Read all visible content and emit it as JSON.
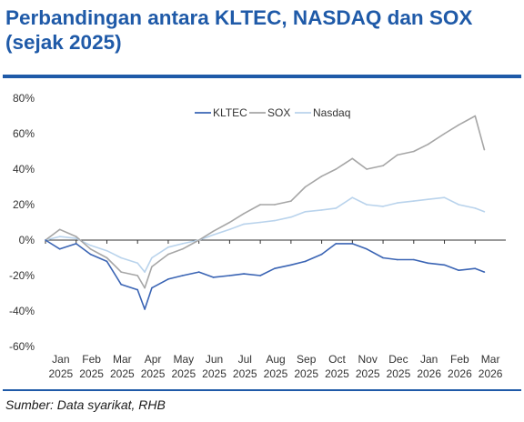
{
  "header": {
    "title_line1": "Perbandingan antara KLTEC, NASDAQ dan SOX",
    "title_line2": "(sejak 2025)"
  },
  "footer": {
    "source": "Sumber: Data syarikat, RHB"
  },
  "colors": {
    "title": "#1f5aa8",
    "kltec": "#3a64b4",
    "sox": "#a6a6a6",
    "nasdaq": "#b9d3ec"
  },
  "chart_data": {
    "type": "line",
    "title": "Perbandingan antara KLTEC, NASDAQ dan SOX (sejak 2025)",
    "xlabel": "",
    "ylabel": "",
    "ylim": [
      -60,
      80
    ],
    "y_ticks": [
      "80%",
      "60%",
      "40%",
      "20%",
      "0%",
      "-20%",
      "-40%",
      "-60%"
    ],
    "y_tick_values": [
      80,
      60,
      40,
      20,
      0,
      -20,
      -40,
      -60
    ],
    "x_ticks": [
      [
        "Jan",
        "2025"
      ],
      [
        "Feb",
        "2025"
      ],
      [
        "Mar",
        "2025"
      ],
      [
        "Apr",
        "2025"
      ],
      [
        "May",
        "2025"
      ],
      [
        "Jun",
        "2025"
      ],
      [
        "Jul",
        "2025"
      ],
      [
        "Aug",
        "2025"
      ],
      [
        "Sep",
        "2025"
      ],
      [
        "Oct",
        "2025"
      ],
      [
        "Nov",
        "2025"
      ],
      [
        "Dec",
        "2025"
      ],
      [
        "Jan",
        "2026"
      ],
      [
        "Feb",
        "2026"
      ],
      [
        "Mar",
        "2026"
      ]
    ],
    "legend_position": "top",
    "grid": false,
    "x": [
      "2025-01",
      "2025-01-15",
      "2025-02",
      "2025-02-15",
      "2025-03",
      "2025-03-15",
      "2025-04",
      "2025-04-08",
      "2025-04-15",
      "2025-05",
      "2025-05-15",
      "2025-06",
      "2025-06-15",
      "2025-07",
      "2025-07-15",
      "2025-08",
      "2025-08-15",
      "2025-09",
      "2025-09-15",
      "2025-10",
      "2025-10-15",
      "2025-11",
      "2025-11-15",
      "2025-12",
      "2025-12-15",
      "2026-01",
      "2026-01-15",
      "2026-02",
      "2026-02-15",
      "2026-03",
      "2026-03-10"
    ],
    "series": [
      {
        "name": "KLTEC",
        "color": "#3a64b4",
        "values": [
          0,
          -5,
          -2,
          -8,
          -12,
          -25,
          -28,
          -39,
          -27,
          -22,
          -20,
          -18,
          -21,
          -20,
          -19,
          -20,
          -16,
          -14,
          -12,
          -8,
          -2,
          -2,
          -5,
          -10,
          -11,
          -11,
          -13,
          -14,
          -17,
          -16,
          -18
        ]
      },
      {
        "name": "SOX",
        "color": "#a6a6a6",
        "values": [
          0,
          6,
          2,
          -5,
          -10,
          -18,
          -20,
          -27,
          -15,
          -8,
          -5,
          0,
          5,
          10,
          15,
          20,
          20,
          22,
          30,
          36,
          40,
          46,
          40,
          42,
          48,
          50,
          54,
          60,
          65,
          70,
          51
        ]
      },
      {
        "name": "Nasdaq",
        "color": "#b9d3ec",
        "values": [
          0,
          2,
          1,
          -3,
          -6,
          -10,
          -13,
          -18,
          -10,
          -4,
          -2,
          0,
          3,
          6,
          9,
          10,
          11,
          13,
          16,
          17,
          18,
          24,
          20,
          19,
          21,
          22,
          23,
          24,
          20,
          18,
          16
        ]
      }
    ]
  }
}
